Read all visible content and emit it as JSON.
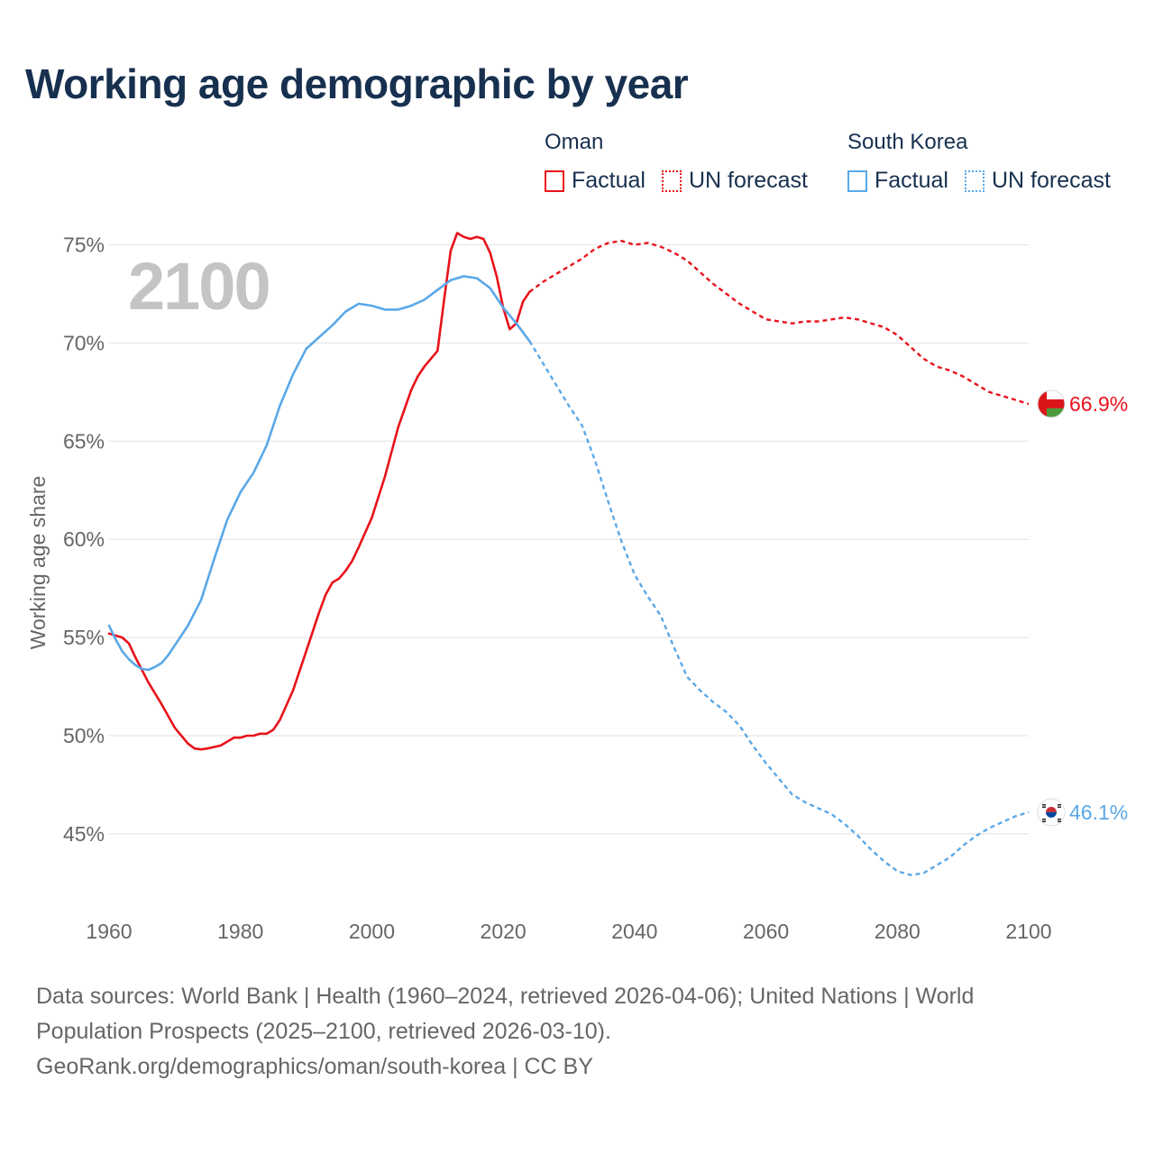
{
  "title": "Working age demographic by year",
  "colors": {
    "oman": "#e8131b",
    "korea": "#5aa8e8",
    "title": "#17304f"
  },
  "legend": {
    "groups": [
      {
        "name": "Oman",
        "items": [
          {
            "label": "Factual",
            "style": "solid"
          },
          {
            "label": "UN forecast",
            "style": "dotted"
          }
        ]
      },
      {
        "name": "South Korea",
        "items": [
          {
            "label": "Factual",
            "style": "solid"
          },
          {
            "label": "UN forecast",
            "style": "dotted"
          }
        ]
      }
    ]
  },
  "chart_data": {
    "type": "line",
    "title": "Working age demographic by year",
    "ylabel": "Working age share",
    "xlabel": "",
    "xlim": [
      1960,
      2100
    ],
    "ylim": [
      41,
      77
    ],
    "x_ticks": [
      1960,
      1980,
      2000,
      2020,
      2040,
      2060,
      2080,
      2100
    ],
    "y_ticks": [
      45,
      50,
      55,
      60,
      65,
      70,
      75
    ],
    "y_tick_labels": [
      "45%",
      "50%",
      "55%",
      "60%",
      "65%",
      "70%",
      "75%"
    ],
    "year_overlay": "2100",
    "factual_range": [
      1960,
      2024
    ],
    "forecast_range": [
      2025,
      2100
    ],
    "series": [
      {
        "name": "Oman",
        "end_label": "66.9%",
        "flag": "oman-flag",
        "factual": {
          "x": [
            1960,
            1962,
            1963,
            1964,
            1966,
            1968,
            1970,
            1972,
            1973,
            1974,
            1975,
            1977,
            1979,
            1980,
            1981,
            1982,
            1983,
            1984,
            1985,
            1986,
            1988,
            1990,
            1992,
            1993,
            1994,
            1995,
            1996,
            1997,
            1998,
            2000,
            2002,
            2004,
            2006,
            2007,
            2008,
            2010,
            2011,
            2012,
            2013,
            2014,
            2015,
            2016,
            2017,
            2018,
            2019,
            2020,
            2021,
            2022,
            2023,
            2024
          ],
          "y": [
            55.2,
            55.0,
            54.7,
            54.0,
            52.7,
            51.6,
            50.4,
            49.6,
            49.35,
            49.3,
            49.35,
            49.5,
            49.9,
            49.9,
            50.0,
            50.0,
            50.1,
            50.1,
            50.3,
            50.8,
            52.3,
            54.3,
            56.3,
            57.2,
            57.8,
            58.0,
            58.4,
            58.9,
            59.6,
            61.1,
            63.2,
            65.7,
            67.6,
            68.3,
            68.8,
            69.6,
            72.2,
            74.7,
            75.6,
            75.4,
            75.3,
            75.4,
            75.3,
            74.6,
            73.4,
            71.8,
            70.7,
            71.0,
            72.1,
            72.6
          ]
        },
        "forecast": {
          "x": [
            2024,
            2026,
            2028,
            2030,
            2032,
            2034,
            2036,
            2038,
            2040,
            2042,
            2044,
            2046,
            2048,
            2050,
            2052,
            2054,
            2056,
            2058,
            2060,
            2062,
            2064,
            2066,
            2068,
            2070,
            2072,
            2074,
            2076,
            2078,
            2080,
            2082,
            2084,
            2086,
            2088,
            2090,
            2092,
            2094,
            2096,
            2098,
            2100
          ],
          "y": [
            72.6,
            73.1,
            73.5,
            73.9,
            74.3,
            74.8,
            75.1,
            75.2,
            75.0,
            75.1,
            74.9,
            74.6,
            74.2,
            73.6,
            73.0,
            72.5,
            72.0,
            71.6,
            71.2,
            71.1,
            71.0,
            71.1,
            71.1,
            71.2,
            71.3,
            71.2,
            71.0,
            70.8,
            70.4,
            69.8,
            69.2,
            68.8,
            68.6,
            68.3,
            67.9,
            67.5,
            67.3,
            67.1,
            66.9
          ]
        }
      },
      {
        "name": "South Korea",
        "end_label": "46.1%",
        "flag": "south-korea-flag",
        "factual": {
          "x": [
            1960,
            1961,
            1962,
            1963,
            1964,
            1965,
            1966,
            1967,
            1968,
            1969,
            1970,
            1972,
            1974,
            1976,
            1978,
            1980,
            1982,
            1984,
            1986,
            1988,
            1990,
            1992,
            1994,
            1996,
            1998,
            2000,
            2002,
            2004,
            2006,
            2008,
            2010,
            2012,
            2014,
            2016,
            2018,
            2020,
            2022,
            2024
          ],
          "y": [
            55.6,
            54.9,
            54.3,
            53.9,
            53.6,
            53.4,
            53.35,
            53.5,
            53.7,
            54.1,
            54.6,
            55.6,
            56.9,
            59.0,
            61.0,
            62.4,
            63.4,
            64.8,
            66.8,
            68.4,
            69.7,
            70.3,
            70.9,
            71.6,
            72.0,
            71.9,
            71.7,
            71.7,
            71.9,
            72.2,
            72.7,
            73.2,
            73.4,
            73.3,
            72.8,
            71.8,
            71.0,
            70.1
          ]
        },
        "forecast": {
          "x": [
            2024,
            2026,
            2028,
            2030,
            2032,
            2034,
            2036,
            2038,
            2040,
            2042,
            2044,
            2046,
            2048,
            2050,
            2052,
            2054,
            2056,
            2058,
            2060,
            2062,
            2064,
            2066,
            2068,
            2070,
            2072,
            2074,
            2076,
            2078,
            2080,
            2082,
            2084,
            2086,
            2088,
            2090,
            2092,
            2094,
            2096,
            2098,
            2100
          ],
          "y": [
            70.1,
            69.0,
            67.9,
            66.8,
            65.8,
            64.0,
            61.9,
            59.9,
            58.2,
            57.1,
            56.1,
            54.5,
            53.0,
            52.3,
            51.7,
            51.2,
            50.5,
            49.5,
            48.6,
            47.8,
            47.0,
            46.6,
            46.3,
            46.0,
            45.5,
            44.9,
            44.2,
            43.6,
            43.1,
            42.9,
            43.0,
            43.4,
            43.8,
            44.4,
            44.9,
            45.3,
            45.6,
            45.9,
            46.1
          ]
        }
      }
    ]
  },
  "sources": {
    "line1": "Data sources: World Bank | Health (1960–2024, retrieved 2026-04-06); United Nations | World",
    "line2": "Population Prospects (2025–2100, retrieved 2026-03-10).",
    "line3": "GeoRank.org/demographics/oman/south-korea | CC BY"
  }
}
